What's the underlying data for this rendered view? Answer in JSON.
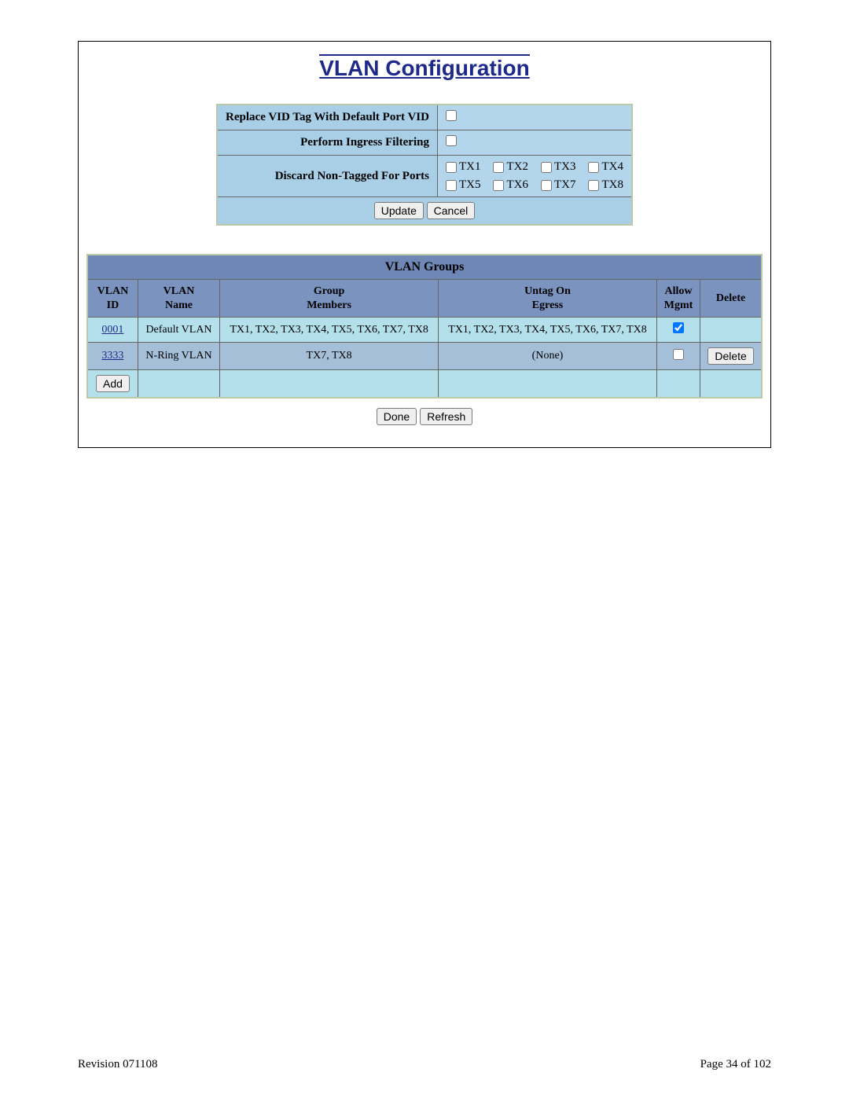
{
  "title": "VLAN Configuration",
  "config": {
    "replace_vid_label": "Replace VID Tag With Default Port VID",
    "replace_vid_checked": false,
    "ingress_label": "Perform Ingress Filtering",
    "ingress_checked": false,
    "discard_label": "Discard Non-Tagged For Ports",
    "ports": [
      {
        "label": "TX1",
        "checked": false
      },
      {
        "label": "TX2",
        "checked": false
      },
      {
        "label": "TX3",
        "checked": false
      },
      {
        "label": "TX4",
        "checked": false
      },
      {
        "label": "TX5",
        "checked": false
      },
      {
        "label": "TX6",
        "checked": false
      },
      {
        "label": "TX7",
        "checked": false
      },
      {
        "label": "TX8",
        "checked": false
      }
    ],
    "update_label": "Update",
    "cancel_label": "Cancel"
  },
  "groups": {
    "title": "VLAN Groups",
    "headers": {
      "id": "VLAN\nID",
      "name": "VLAN\nName",
      "members": "Group\nMembers",
      "untag": "Untag On\nEgress",
      "allow": "Allow\nMgmt",
      "delete": "Delete"
    },
    "rows": [
      {
        "id": "0001",
        "name": "Default VLAN",
        "members": "TX1, TX2, TX3, TX4, TX5, TX6, TX7, TX8",
        "untag": "TX1, TX2, TX3, TX4, TX5, TX6, TX7, TX8",
        "allow_checked": true,
        "has_delete": false,
        "row_class": "row-light"
      },
      {
        "id": "3333",
        "name": "N-Ring VLAN",
        "members": "TX7, TX8",
        "untag": "(None)",
        "allow_checked": false,
        "has_delete": true,
        "row_class": "row-dark"
      }
    ],
    "add_label": "Add",
    "delete_label": "Delete"
  },
  "bottom": {
    "done_label": "Done",
    "refresh_label": "Refresh"
  },
  "footer": {
    "revision": "Revision 071108",
    "page": "Page 34 of 102"
  },
  "colors": {
    "title_color": "#1e2a8a",
    "config_label_bg": "#a9cfe7",
    "config_input_bg": "#b4d6ec",
    "groups_title_bg": "#6f87b5",
    "groups_header_bg": "#7b93bf",
    "row_light_bg": "#b4e0eb",
    "row_dark_bg": "#a5bfd9",
    "border_outer": "#b9c8a6",
    "border_inner": "#666666"
  }
}
